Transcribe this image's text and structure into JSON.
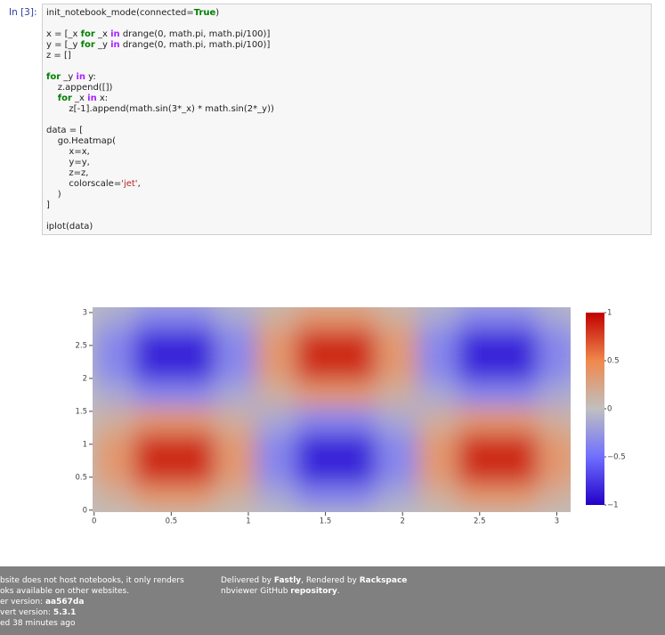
{
  "notebook": {
    "prompt": "In [3]:",
    "code": [
      [
        {
          "t": "init_notebook_mode(connected="
        },
        {
          "t": "True",
          "c": "k"
        },
        {
          "t": ")"
        }
      ],
      [],
      [
        {
          "t": "x = [_x "
        },
        {
          "t": "for",
          "c": "k"
        },
        {
          "t": " _x "
        },
        {
          "t": "in",
          "c": "o"
        },
        {
          "t": " drange(0, math.pi, math.pi/100)]"
        }
      ],
      [
        {
          "t": "y = [_y "
        },
        {
          "t": "for",
          "c": "k"
        },
        {
          "t": " _y "
        },
        {
          "t": "in",
          "c": "o"
        },
        {
          "t": " drange(0, math.pi, math.pi/100)]"
        }
      ],
      [
        {
          "t": "z = []"
        }
      ],
      [],
      [
        {
          "t": "for",
          "c": "k"
        },
        {
          "t": " _y "
        },
        {
          "t": "in",
          "c": "o"
        },
        {
          "t": " y:"
        }
      ],
      [
        {
          "t": "    z.append([])"
        }
      ],
      [
        {
          "t": "    "
        },
        {
          "t": "for",
          "c": "k"
        },
        {
          "t": " _x "
        },
        {
          "t": "in",
          "c": "o"
        },
        {
          "t": " x:"
        }
      ],
      [
        {
          "t": "        z[-1].append(math.sin(3*_x) * math.sin(2*_y))"
        }
      ],
      [],
      [
        {
          "t": "data = ["
        }
      ],
      [
        {
          "t": "    go.Heatmap("
        }
      ],
      [
        {
          "t": "        x=x,"
        }
      ],
      [
        {
          "t": "        y=y,"
        }
      ],
      [
        {
          "t": "        z=z,"
        }
      ],
      [
        {
          "t": "        colorscale="
        },
        {
          "t": "'jet'",
          "c": "s"
        },
        {
          "t": ","
        }
      ],
      [
        {
          "t": "    )"
        }
      ],
      [
        {
          "t": "]"
        }
      ],
      [],
      [
        {
          "t": "iplot(data)"
        }
      ]
    ]
  },
  "chart_data": {
    "type": "heatmap",
    "x": [
      0.13,
      0.39,
      0.65,
      0.92,
      1.18,
      1.44,
      1.7,
      1.96,
      2.23,
      2.49,
      2.75,
      3.01
    ],
    "y": [
      0.2,
      0.59,
      0.98,
      1.37,
      1.77,
      2.16,
      2.55,
      2.95
    ],
    "z": [
      [
        0.15,
        0.35,
        0.35,
        0.15,
        -0.15,
        -0.35,
        -0.35,
        -0.15,
        0.15,
        0.35,
        0.35,
        0.15
      ],
      [
        0.35,
        0.85,
        0.85,
        0.35,
        -0.35,
        -0.85,
        -0.85,
        -0.35,
        0.35,
        0.85,
        0.85,
        0.35
      ],
      [
        0.35,
        0.85,
        0.85,
        0.35,
        -0.35,
        -0.85,
        -0.85,
        -0.35,
        0.35,
        0.85,
        0.85,
        0.35
      ],
      [
        0.15,
        0.35,
        0.35,
        0.15,
        -0.15,
        -0.35,
        -0.35,
        -0.15,
        0.15,
        0.35,
        0.35,
        0.15
      ],
      [
        -0.15,
        -0.35,
        -0.35,
        -0.15,
        0.15,
        0.35,
        0.35,
        0.15,
        -0.15,
        -0.35,
        -0.35,
        -0.15
      ],
      [
        -0.35,
        -0.85,
        -0.85,
        -0.35,
        0.35,
        0.85,
        0.85,
        0.35,
        -0.35,
        -0.85,
        -0.85,
        -0.35
      ],
      [
        -0.35,
        -0.85,
        -0.85,
        -0.35,
        0.35,
        0.85,
        0.85,
        0.35,
        -0.35,
        -0.85,
        -0.85,
        -0.35
      ],
      [
        -0.15,
        -0.35,
        -0.35,
        -0.15,
        0.15,
        0.35,
        0.35,
        0.15,
        -0.15,
        -0.35,
        -0.35,
        -0.15
      ]
    ],
    "xlim": [
      -0.01,
      3.09
    ],
    "ylim": [
      -0.03,
      3.08
    ],
    "xticks": [
      0,
      0.5,
      1,
      1.5,
      2,
      2.5,
      3
    ],
    "yticks": [
      0,
      0.5,
      1,
      1.5,
      2,
      2.5,
      3
    ],
    "zlim": [
      -1,
      1
    ],
    "colorscale": [
      [
        -1,
        "#2200c8"
      ],
      [
        -0.5,
        "#6f6fff"
      ],
      [
        0,
        "#c0c0c0"
      ],
      [
        0.5,
        "#f0884c"
      ],
      [
        1,
        "#c00000"
      ]
    ],
    "colorbar_ticks": [
      {
        "value": 1,
        "label": "1"
      },
      {
        "value": 0.5,
        "label": "0.5"
      },
      {
        "value": 0,
        "label": "0"
      },
      {
        "value": -0.5,
        "label": "−0.5"
      },
      {
        "value": -1,
        "label": "−1"
      }
    ]
  },
  "footer": {
    "left": [
      [
        {
          "t": "bsite does not host notebooks, it only renders"
        }
      ],
      [
        {
          "t": "oks available on other websites."
        }
      ],
      [
        {
          "t": "er version: "
        },
        {
          "t": "aa567da",
          "c": "b"
        }
      ],
      [
        {
          "t": "vert version: "
        },
        {
          "t": "5.3.1",
          "c": "b"
        }
      ],
      [
        {
          "t": "ed 38 minutes ago"
        }
      ]
    ],
    "right": [
      [
        {
          "t": "Delivered by "
        },
        {
          "t": "Fastly",
          "c": "b"
        },
        {
          "t": ", Rendered by "
        },
        {
          "t": "Rackspace",
          "c": "b"
        }
      ],
      [
        {
          "t": "nbviewer GitHub "
        },
        {
          "t": "repository",
          "c": "b"
        },
        {
          "t": "."
        }
      ]
    ]
  }
}
